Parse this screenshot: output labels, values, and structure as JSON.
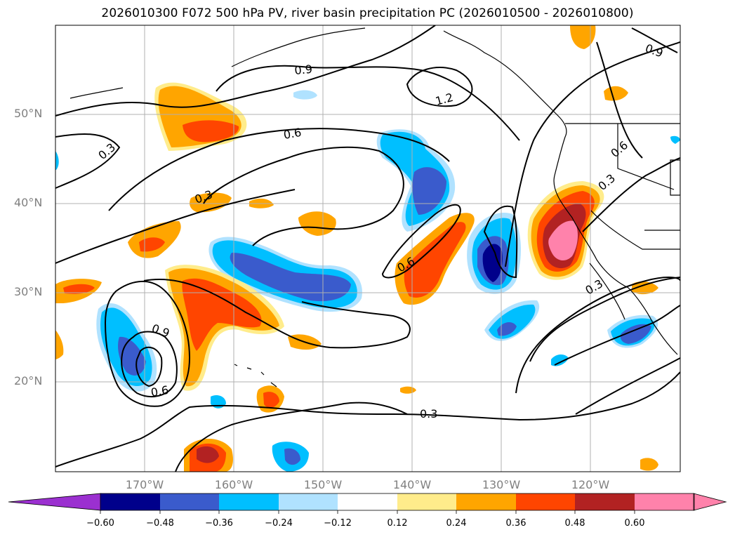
{
  "title": "2026010300 F072 500 hPa PV, river basin precipitation PC (2026010500 - 2026010800)",
  "map": {
    "projection": "PlateCarree",
    "extent": {
      "lon": [
        -180,
        -110
      ],
      "lat": [
        10,
        60
      ]
    },
    "grid": true,
    "lat_labels": [
      "20°N",
      "30°N",
      "40°N",
      "50°N"
    ],
    "lon_labels": [
      "170°W",
      "160°W",
      "150°W",
      "140°W",
      "130°W",
      "120°W"
    ],
    "contour_labels": [
      "0.9",
      "1.2",
      "0.6",
      "0.3",
      "0.3",
      "0.6",
      "0.9",
      "0.6",
      "0.3",
      "0.6",
      "0.3",
      "0.3",
      "0.9"
    ]
  },
  "colorbar": {
    "ticks": [
      "−0.60",
      "−0.48",
      "−0.36",
      "−0.24",
      "−0.12",
      "0.12",
      "0.24",
      "0.36",
      "0.48",
      "0.60"
    ],
    "colors": [
      "#9b30d0",
      "#00008b",
      "#3a5bcc",
      "#00bfff",
      "#b0e2ff",
      "#ffffff",
      "#ffec8b",
      "#ffa500",
      "#ff4500",
      "#b22222",
      "#ff82ab"
    ],
    "extend": "both"
  }
}
